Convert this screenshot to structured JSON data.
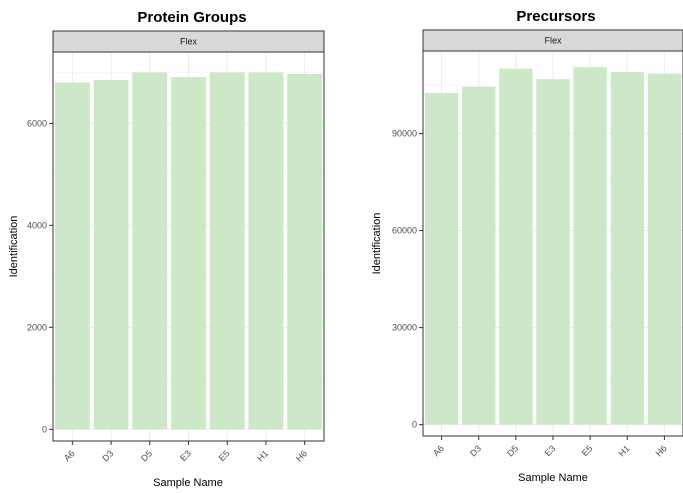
{
  "colors": {
    "bar": "#cce8c6",
    "strip_fill": "#d9d9d9",
    "strip_border": "#333333",
    "grid": "#ebebeb",
    "panel_border": "#333333"
  },
  "chart_data": [
    {
      "type": "bar",
      "title": "Protein Groups",
      "facet": "Flex",
      "xlabel": "Sample Name",
      "ylabel": "Identification",
      "categories": [
        "A6",
        "D3",
        "D5",
        "E3",
        "E5",
        "H1",
        "H6"
      ],
      "values": [
        6800,
        6850,
        7000,
        6910,
        7000,
        7000,
        6970
      ],
      "ylim": [
        -230,
        7400
      ],
      "yticks": [
        0,
        2000,
        4000,
        6000
      ],
      "ytick_labels": [
        "0",
        "2000",
        "4000",
        "6000"
      ],
      "grid": true
    },
    {
      "type": "bar",
      "title": "Precursors",
      "facet": "Flex",
      "xlabel": "Sample Name",
      "ylabel": "Identification",
      "categories": [
        "A6",
        "D3",
        "D5",
        "E3",
        "E5",
        "H1",
        "H6"
      ],
      "values": [
        102500,
        104500,
        110000,
        106800,
        110500,
        109000,
        108500
      ],
      "ylim": [
        -3500,
        115500
      ],
      "yticks": [
        0,
        30000,
        60000,
        90000
      ],
      "ytick_labels": [
        "0",
        "30000",
        "60000",
        "90000"
      ],
      "grid": true
    }
  ]
}
